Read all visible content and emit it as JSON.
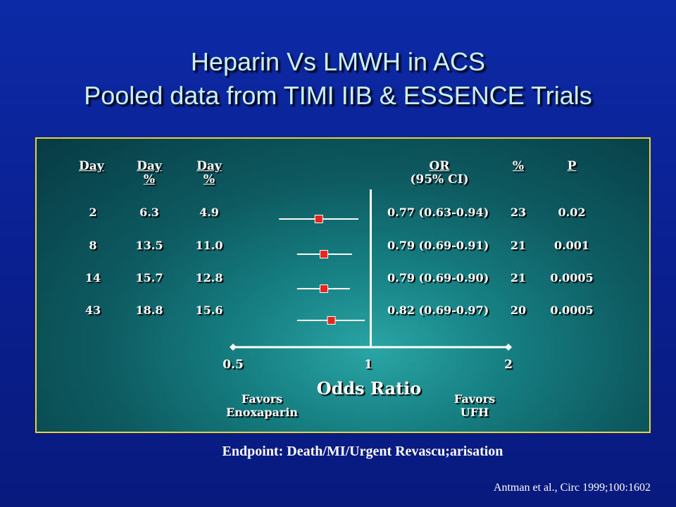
{
  "title_line1": "Heparin Vs LMWH in ACS",
  "title_line2": "Pooled data from TIMI IIB & ESSENCE Trials",
  "headers": {
    "day": "Day",
    "col2_top": "Day",
    "col2_bottom": "%",
    "col3_top": "Day",
    "col3_bottom": "%",
    "or_top": "OR",
    "or_bottom": "(95% CI)",
    "pct": "%",
    "p": "P"
  },
  "rows": [
    {
      "day": "2",
      "col2": "6.3",
      "col3": "4.9",
      "or_text": "0.77 (0.63-0.94)",
      "pct": "23",
      "p": "0.02"
    },
    {
      "day": "8",
      "col2": "13.5",
      "col3": "11.0",
      "or_text": "0.79 (0.69-0.91)",
      "pct": "21",
      "p": "0.001"
    },
    {
      "day": "14",
      "col2": "15.7",
      "col3": "12.8",
      "or_text": "0.79 (0.69-0.90)",
      "pct": "21",
      "p": "0.0005"
    },
    {
      "day": "43",
      "col2": "18.8",
      "col3": "15.6",
      "or_text": "0.82 (0.69-0.97)",
      "pct": "20",
      "p": "0.0005"
    }
  ],
  "axis": {
    "ticks": [
      "0.5",
      "1",
      "2"
    ],
    "label": "Odds Ratio",
    "left_favors_line1": "Favors",
    "left_favors_line2": "Enoxaparin",
    "right_favors_line1": "Favors",
    "right_favors_line2": "UFH"
  },
  "endpoint": "Endpoint: Death/MI/Urgent Revascu;arisation",
  "source": "Antman et al., Circ 1999;100:1602",
  "colors": {
    "marker": "#e8261c",
    "line": "#ffffff",
    "border": "#e8d23a",
    "title": "#c8f0ff"
  },
  "chart_data": {
    "type": "forest",
    "scale": "log2",
    "xlim": [
      0.5,
      2
    ],
    "reference": 1,
    "xlabel": "Odds Ratio",
    "categories": [
      "2",
      "8",
      "14",
      "43"
    ],
    "odds_ratio": [
      0.77,
      0.79,
      0.79,
      0.82
    ],
    "ci_low": [
      0.63,
      0.69,
      0.69,
      0.69
    ],
    "ci_high": [
      0.94,
      0.91,
      0.9,
      0.97
    ]
  }
}
